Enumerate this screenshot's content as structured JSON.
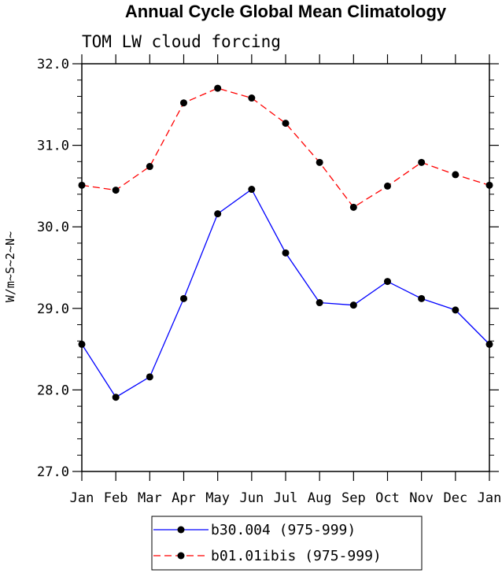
{
  "chart_data": {
    "type": "line",
    "title": "Annual Cycle Global Mean Climatology",
    "subtitle": "TOM LW cloud forcing",
    "ylabel": "W/m~S~2~N~",
    "xlabel": "",
    "categories": [
      "Jan",
      "Feb",
      "Mar",
      "Apr",
      "May",
      "Jun",
      "Jul",
      "Aug",
      "Sep",
      "Oct",
      "Nov",
      "Dec",
      "Jan"
    ],
    "ylim": [
      27.0,
      32.0
    ],
    "yticks": [
      "27.0",
      "28.0",
      "29.0",
      "30.0",
      "31.0",
      "32.0"
    ],
    "grid": false,
    "legend_position": "bottom-center",
    "series": [
      {
        "name": "b30.004 (975-999)",
        "color": "#0000ff",
        "dash": "solid",
        "marker": "dot",
        "values": [
          28.56,
          27.91,
          28.16,
          29.12,
          30.16,
          30.46,
          29.68,
          29.07,
          29.04,
          29.33,
          29.12,
          28.98,
          28.56
        ]
      },
      {
        "name": "b01.01ibis (975-999)",
        "color": "#ff0000",
        "dash": "dashed",
        "marker": "dot",
        "values": [
          30.51,
          30.45,
          30.74,
          31.52,
          31.7,
          31.58,
          31.27,
          30.79,
          30.24,
          30.5,
          30.79,
          30.64,
          30.51
        ]
      }
    ]
  }
}
